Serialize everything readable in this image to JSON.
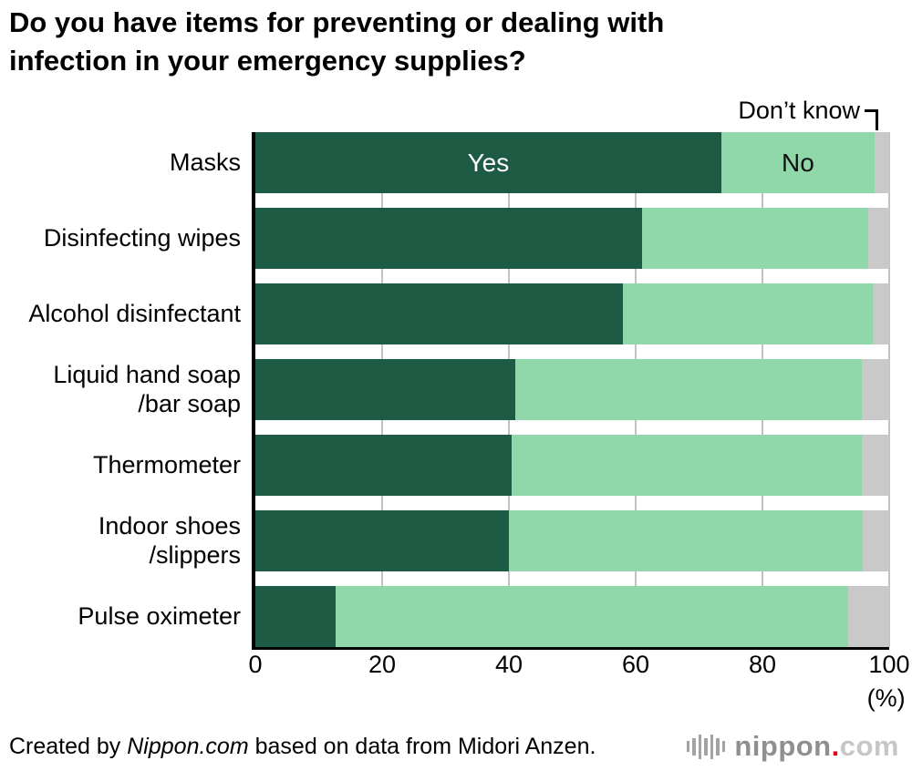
{
  "title": "Do you have items for preventing or dealing with\ninfection in your emergency supplies?",
  "chart_data": {
    "type": "bar",
    "orientation": "horizontal",
    "stacked": true,
    "categories": [
      "Masks",
      "Disinfecting wipes",
      "Alcohol disinfectant",
      "Liquid hand soap\n/bar soap",
      "Thermometer",
      "Indoor shoes\n/slippers",
      "Pulse oximeter"
    ],
    "series": [
      {
        "name": "Yes",
        "color": "#1d5b45",
        "label_color": "#ffffff",
        "values": [
          73.5,
          61.0,
          58.0,
          41.0,
          40.5,
          40.0,
          12.7
        ]
      },
      {
        "name": "No",
        "color": "#90d8a9",
        "label_color": "#111111",
        "values": [
          24.2,
          35.7,
          39.4,
          54.7,
          55.2,
          55.8,
          80.8
        ]
      },
      {
        "name": "Don’t know",
        "color": "#c9c9c9",
        "label_color": "#111111",
        "values": [
          2.3,
          3.3,
          2.6,
          4.3,
          4.3,
          4.2,
          6.5
        ]
      }
    ],
    "xlim": [
      0,
      100
    ],
    "x_ticks": [
      0,
      20,
      40,
      60,
      80,
      100
    ],
    "x_unit": "(%)",
    "gridlines": [
      20,
      40,
      60,
      80,
      100
    ],
    "annotation": "Don’t know",
    "series_labels_row": 0,
    "grid": true,
    "legend_position": "inside-first-bar"
  },
  "footer": {
    "credit_prefix": "Created by ",
    "credit_source": "Nippon.com",
    "credit_suffix": " based on data from Midori Anzen.",
    "logo_text_main": "nippon",
    "logo_dot": ".",
    "logo_tld": "com"
  }
}
